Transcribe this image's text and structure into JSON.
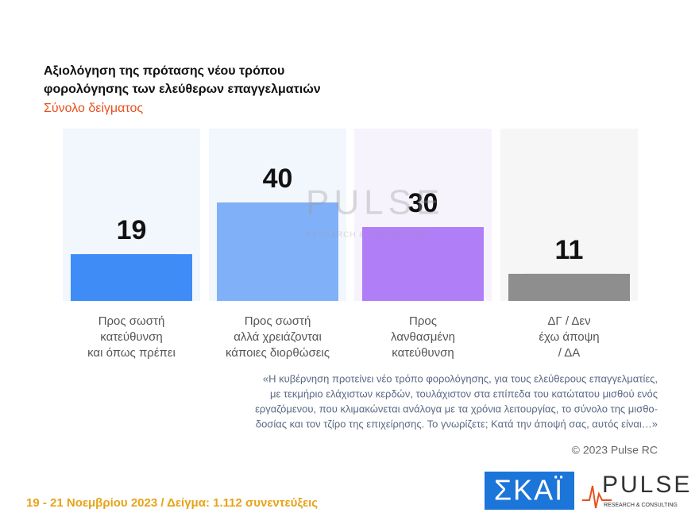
{
  "chart_data": {
    "type": "bar",
    "title": [
      "Αξιολόγηση της πρότασης νέου τρόπου",
      "φορολόγησης των ελεύθερων επαγγελματιών"
    ],
    "subtitle": "Σύνολο δείγματος",
    "categories": [
      [
        "Προς σωστή",
        "κατεύθυνση",
        "και όπως πρέπει"
      ],
      [
        "Προς σωστή",
        "αλλά χρειάζονται",
        "κάποιες διορθώσεις"
      ],
      [
        "Προς",
        "λανθασμένη",
        "κατεύθυνση"
      ],
      [
        "ΔΓ / Δεν",
        "έχω άποψη",
        "/ ΔΑ"
      ]
    ],
    "values": [
      19,
      40,
      30,
      11
    ],
    "colors": [
      "#3f8cf6",
      "#80b1f8",
      "#b07ef6",
      "#8e8e8e"
    ],
    "annotation": [
      "«Η κυβέρνηση προτείνει νέο τρόπο φορολόγησης, για τους ελεύθερους επαγγελματίες,",
      "με τεκμήριο ελάχιστων κερδών, τουλάχιστον στα επίπεδα του κατώτατου μισθού ενός",
      "εργαζόμενου, που κλιμακώνεται ανάλογα με τα χρόνια λειτουργίας, το σύνολο της μισθο-",
      "δοσίας και τον τζίρο της επιχείρησης. Το γνωρίζετε; Κατά την άποψή σας, αυτός είναι…»"
    ],
    "copyright": "© 2023 Pulse RC",
    "footer": "19 - 21  Νοεμβρίου  2023  /  Δείγμα:  1.112 συνεντεύξεις",
    "logos": {
      "skai": "ΣΚΑΪ",
      "pulse": "PULSE",
      "pulse_sub": "RESEARCH & CONSULTING"
    },
    "watermark": {
      "name": "PULSE",
      "sub": "RESEARCH & CONSULTING"
    }
  }
}
